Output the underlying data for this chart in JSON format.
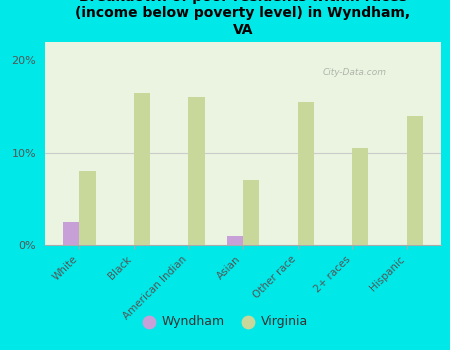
{
  "title": "Breakdown of poor residents within races\n(income below poverty level) in Wyndham,\nVA",
  "categories": [
    "White",
    "Black",
    "American Indian",
    "Asian",
    "Other race",
    "2+ races",
    "Hispanic"
  ],
  "wyndham_values": [
    2.5,
    0,
    0,
    1.0,
    0,
    0,
    0
  ],
  "virginia_values": [
    8.0,
    16.5,
    16.0,
    7.0,
    15.5,
    10.5,
    14.0
  ],
  "wyndham_color": "#c8a0d8",
  "virginia_color": "#c8d89a",
  "background_color": "#00e8e8",
  "plot_bg_gradient_top": "#f0f8e8",
  "plot_bg_gradient_bottom": "#e0f0e0",
  "ylim": [
    0,
    22
  ],
  "yticks": [
    0,
    10,
    20
  ],
  "ytick_labels": [
    "0%",
    "10%",
    "20%"
  ],
  "grid_color": "#cccccc",
  "watermark": "City-Data.com"
}
